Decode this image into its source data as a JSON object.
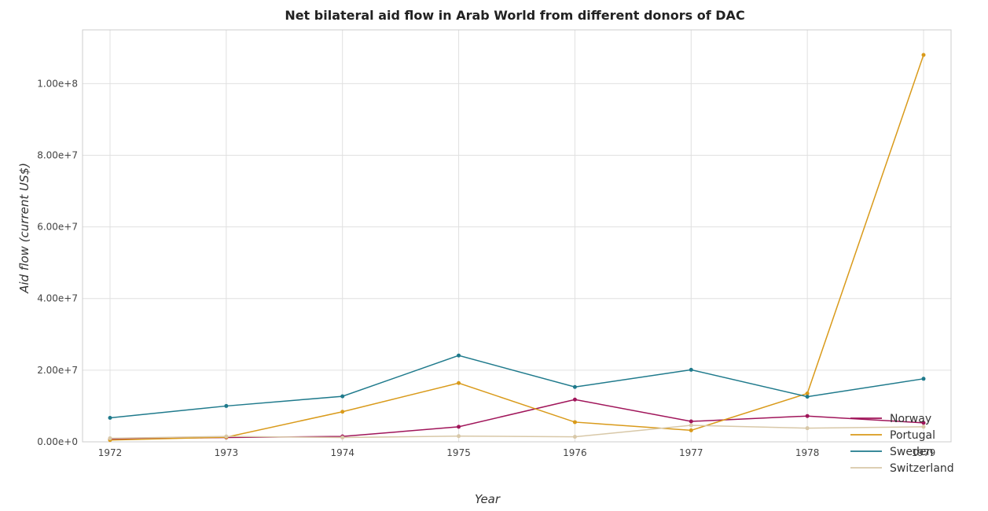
{
  "chart_data": {
    "type": "line",
    "title": "Net bilateral aid flow in Arab World from different donors of DAC",
    "xlabel": "Year",
    "ylabel": "Aid flow (current US$)",
    "categories": [
      "1972",
      "1973",
      "1974",
      "1975",
      "1976",
      "1977",
      "1978",
      "1979"
    ],
    "ylim": [
      0,
      115000000
    ],
    "yticks": [
      0,
      20000000,
      40000000,
      60000000,
      80000000,
      100000000
    ],
    "ytick_labels": [
      "0.00e+0",
      "2.00e+7",
      "4.00e+7",
      "6.00e+7",
      "8.00e+7",
      "1.00e+8"
    ],
    "grid": true,
    "legend_position": "bottom-right",
    "series": [
      {
        "name": "Norway",
        "color": "#a0155a",
        "values": [
          800000,
          1200000,
          1500000,
          4200000,
          11800000,
          5700000,
          7200000,
          5300000
        ]
      },
      {
        "name": "Portugal",
        "color": "#d99a1a",
        "values": [
          500000,
          1300000,
          8400000,
          16400000,
          5500000,
          3200000,
          13500000,
          108000000
        ]
      },
      {
        "name": "Sweden",
        "color": "#1f7a8c",
        "values": [
          6700000,
          10000000,
          12700000,
          24100000,
          15300000,
          20100000,
          12600000,
          17600000
        ]
      },
      {
        "name": "Switzerland",
        "color": "#d8c8a8",
        "values": [
          1000000,
          1500000,
          1200000,
          1600000,
          1400000,
          4600000,
          3800000,
          4200000
        ]
      }
    ]
  }
}
